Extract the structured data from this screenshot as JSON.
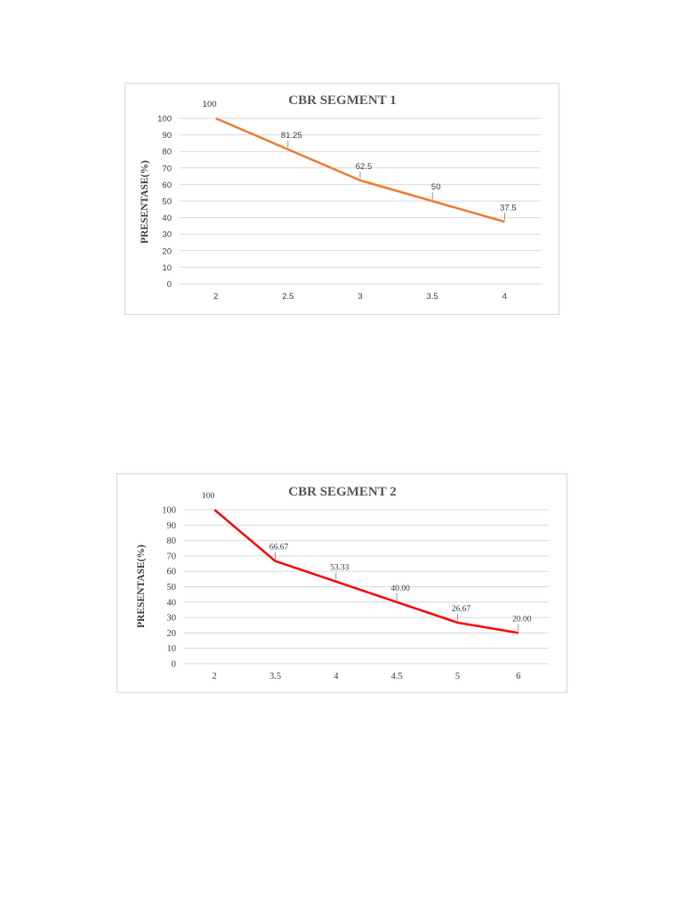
{
  "chart_data": [
    {
      "type": "line",
      "title": "CBR SEGMENT 1",
      "xlabel": "",
      "ylabel": "PRESENTASE(%)",
      "categories": [
        "2",
        "2.5",
        "3",
        "3.5",
        "4"
      ],
      "series": [
        {
          "values": [
            100,
            81.25,
            62.5,
            50,
            37.5
          ],
          "data_labels": [
            "100",
            "81.25",
            "62.5",
            "50",
            "37.5"
          ],
          "color": "#ed7d31"
        }
      ],
      "ylim": [
        0,
        100
      ],
      "yticks": [
        "0",
        "10",
        "20",
        "30",
        "40",
        "50",
        "60",
        "70",
        "80",
        "90",
        "100"
      ],
      "grid": true,
      "legend": "none"
    },
    {
      "type": "line",
      "title": "CBR SEGMENT 2",
      "xlabel": "",
      "ylabel": "PRESENTASE(%)",
      "categories": [
        "2",
        "3.5",
        "4",
        "4.5",
        "5",
        "6"
      ],
      "series": [
        {
          "values": [
            100,
            66.67,
            53.33,
            40.0,
            26.67,
            20.0
          ],
          "data_labels": [
            "100",
            "66.67",
            "53.33",
            "40.00",
            "26.67",
            "20.00"
          ],
          "color": "#ff0000"
        }
      ],
      "ylim": [
        0,
        100
      ],
      "yticks": [
        "0",
        "10",
        "20",
        "30",
        "40",
        "50",
        "60",
        "70",
        "80",
        "90",
        "100"
      ],
      "grid": true,
      "legend": "none"
    }
  ]
}
